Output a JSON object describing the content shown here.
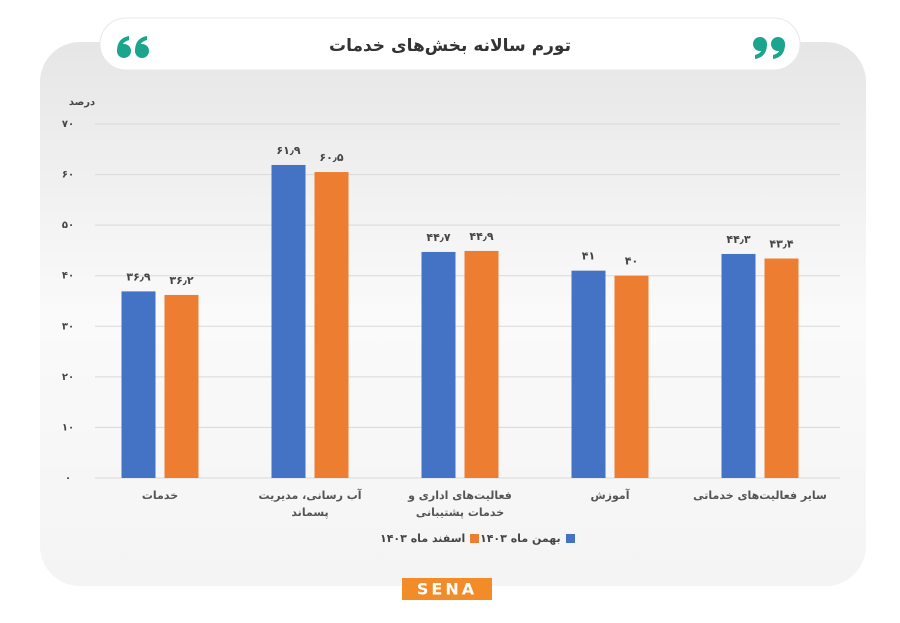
{
  "chart_data": {
    "type": "bar",
    "title": "تورم سالانه بخش‌های خدمات",
    "y_label": "درصد",
    "categories": [
      "خدمات",
      "آب رسانی، مدیریت پسماند",
      "فعالیت‌های اداری و خدمات پشتیبانی",
      "آموزش",
      "سایر فعالیت‌های خدماتی"
    ],
    "series": [
      {
        "name": "بهمن ماه ۱۴۰۳",
        "color": "#4472c4",
        "values": [
          36.9,
          61.9,
          44.7,
          41,
          44.3
        ],
        "value_labels": [
          "۳۶٫۹",
          "۶۱٫۹",
          "۴۴٫۷",
          "۴۱",
          "۴۴٫۳"
        ]
      },
      {
        "name": "اسفند ماه ۱۴۰۳",
        "color": "#ed7d31",
        "values": [
          36.2,
          60.5,
          44.9,
          40,
          43.4
        ],
        "value_labels": [
          "۳۶٫۲",
          "۶۰٫۵",
          "۴۴٫۹",
          "۴۰",
          "۴۳٫۴"
        ]
      }
    ],
    "ylim": [
      0,
      70
    ],
    "yticks": [
      {
        "value": 0,
        "label": "۰"
      },
      {
        "value": 10,
        "label": "۱۰"
      },
      {
        "value": 20,
        "label": "۲۰"
      },
      {
        "value": 30,
        "label": "۳۰"
      },
      {
        "value": 40,
        "label": "۴۰"
      },
      {
        "value": 50,
        "label": "۵۰"
      },
      {
        "value": 60,
        "label": "۶۰"
      },
      {
        "value": 70,
        "label": "۷۰"
      }
    ],
    "grid": true
  },
  "brand": "SENA"
}
